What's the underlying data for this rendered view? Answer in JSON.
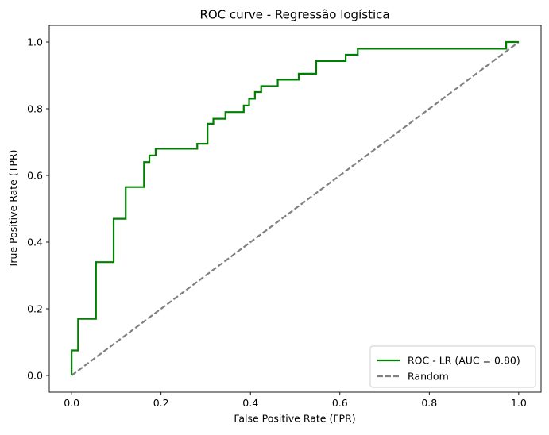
{
  "chart_data": {
    "type": "line",
    "title": "ROC curve - Regressão logística",
    "xlabel": "False Positive Rate (FPR)",
    "ylabel": "True Positive Rate (TPR)",
    "xlim": [
      -0.05,
      1.05
    ],
    "ylim": [
      -0.05,
      1.05
    ],
    "xticks": [
      "0.0",
      "0.2",
      "0.4",
      "0.6",
      "0.8",
      "1.0"
    ],
    "yticks": [
      "0.0",
      "0.2",
      "0.4",
      "0.6",
      "0.8",
      "1.0"
    ],
    "grid": false,
    "legend_position": "lower-right",
    "series": [
      {
        "name": "ROC - LR (AUC = 0.80)",
        "color": "#008000",
        "style": "solid",
        "x": [
          0.0,
          0.0,
          0.0145,
          0.0145,
          0.0545,
          0.0545,
          0.094,
          0.094,
          0.121,
          0.121,
          0.162,
          0.162,
          0.174,
          0.174,
          0.188,
          0.188,
          0.281,
          0.281,
          0.304,
          0.304,
          0.317,
          0.317,
          0.344,
          0.344,
          0.385,
          0.385,
          0.397,
          0.397,
          0.41,
          0.41,
          0.424,
          0.424,
          0.461,
          0.461,
          0.508,
          0.508,
          0.547,
          0.547,
          0.613,
          0.613,
          0.64,
          0.64,
          0.972,
          0.972,
          1.0
        ],
        "y": [
          0.0,
          0.075,
          0.075,
          0.17,
          0.17,
          0.34,
          0.34,
          0.47,
          0.47,
          0.565,
          0.565,
          0.64,
          0.64,
          0.66,
          0.66,
          0.68,
          0.68,
          0.695,
          0.695,
          0.755,
          0.755,
          0.77,
          0.77,
          0.79,
          0.79,
          0.81,
          0.81,
          0.83,
          0.83,
          0.85,
          0.85,
          0.868,
          0.868,
          0.887,
          0.887,
          0.905,
          0.905,
          0.943,
          0.943,
          0.962,
          0.962,
          0.98,
          0.98,
          1.0,
          1.0
        ]
      },
      {
        "name": "Random",
        "color": "#808080",
        "style": "dashed",
        "x": [
          0,
          1
        ],
        "y": [
          0,
          1
        ]
      }
    ]
  }
}
